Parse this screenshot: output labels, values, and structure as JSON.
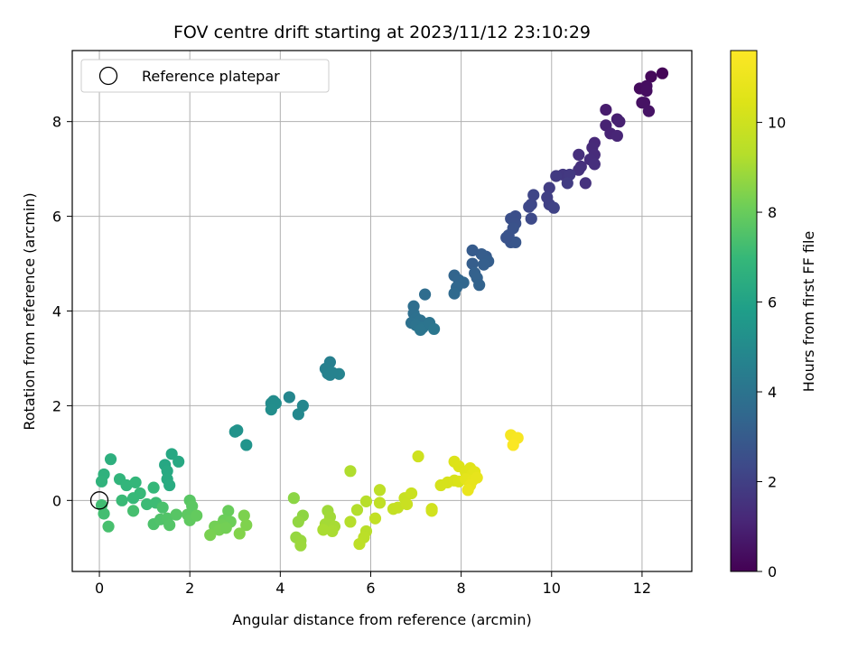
{
  "chart_data": {
    "type": "scatter",
    "title": "FOV centre drift starting at 2023/11/12 23:10:29",
    "xlabel": "Angular distance from reference (arcmin)",
    "ylabel": "Rotation from reference (arcmin)",
    "xlim": [
      -0.6,
      13.1
    ],
    "ylim": [
      -1.5,
      9.5
    ],
    "xticks": [
      0,
      2,
      4,
      6,
      8,
      10,
      12
    ],
    "yticks": [
      0,
      2,
      4,
      6,
      8
    ],
    "grid": true,
    "legend": {
      "position": "top-left",
      "entries": [
        "Reference platepar"
      ]
    },
    "reference_point": {
      "x": 0,
      "y": 0
    },
    "colorbar": {
      "label": "Hours from first FF file",
      "colormap": "viridis",
      "range": [
        0,
        11.6
      ],
      "ticks": [
        0,
        2,
        4,
        6,
        8,
        10
      ]
    },
    "points": [
      {
        "x": 12.45,
        "y": 9.02,
        "c": 0.1
      },
      {
        "x": 12.2,
        "y": 8.95,
        "c": 0.2
      },
      {
        "x": 11.95,
        "y": 8.7,
        "c": 0.3
      },
      {
        "x": 12.1,
        "y": 8.75,
        "c": 0.35
      },
      {
        "x": 12.1,
        "y": 8.65,
        "c": 0.4
      },
      {
        "x": 12.0,
        "y": 8.4,
        "c": 0.45
      },
      {
        "x": 12.05,
        "y": 8.4,
        "c": 0.5
      },
      {
        "x": 12.15,
        "y": 8.22,
        "c": 0.55
      },
      {
        "x": 11.2,
        "y": 8.25,
        "c": 0.8
      },
      {
        "x": 11.45,
        "y": 8.05,
        "c": 0.9
      },
      {
        "x": 11.5,
        "y": 8.0,
        "c": 0.95
      },
      {
        "x": 11.2,
        "y": 7.92,
        "c": 1.0
      },
      {
        "x": 11.3,
        "y": 7.75,
        "c": 1.05
      },
      {
        "x": 11.45,
        "y": 7.7,
        "c": 1.1
      },
      {
        "x": 10.95,
        "y": 7.55,
        "c": 1.2
      },
      {
        "x": 10.9,
        "y": 7.45,
        "c": 1.25
      },
      {
        "x": 10.95,
        "y": 7.3,
        "c": 1.3
      },
      {
        "x": 10.85,
        "y": 7.2,
        "c": 1.35
      },
      {
        "x": 10.95,
        "y": 7.1,
        "c": 1.4
      },
      {
        "x": 10.6,
        "y": 7.3,
        "c": 1.4
      },
      {
        "x": 10.65,
        "y": 7.05,
        "c": 1.45
      },
      {
        "x": 10.6,
        "y": 6.98,
        "c": 1.5
      },
      {
        "x": 10.75,
        "y": 6.7,
        "c": 1.5
      },
      {
        "x": 10.25,
        "y": 6.88,
        "c": 1.7
      },
      {
        "x": 10.4,
        "y": 6.88,
        "c": 1.75
      },
      {
        "x": 10.1,
        "y": 6.85,
        "c": 1.8
      },
      {
        "x": 10.35,
        "y": 6.7,
        "c": 1.85
      },
      {
        "x": 9.95,
        "y": 6.6,
        "c": 1.9
      },
      {
        "x": 9.9,
        "y": 6.4,
        "c": 2.0
      },
      {
        "x": 9.95,
        "y": 6.25,
        "c": 2.05
      },
      {
        "x": 10.05,
        "y": 6.18,
        "c": 2.1
      },
      {
        "x": 9.6,
        "y": 6.45,
        "c": 2.2
      },
      {
        "x": 9.55,
        "y": 6.25,
        "c": 2.25
      },
      {
        "x": 9.5,
        "y": 6.2,
        "c": 2.3
      },
      {
        "x": 9.55,
        "y": 5.95,
        "c": 2.35
      },
      {
        "x": 9.2,
        "y": 6.0,
        "c": 2.5
      },
      {
        "x": 9.1,
        "y": 5.95,
        "c": 2.55
      },
      {
        "x": 9.2,
        "y": 5.85,
        "c": 2.6
      },
      {
        "x": 9.15,
        "y": 5.75,
        "c": 2.65
      },
      {
        "x": 9.05,
        "y": 5.6,
        "c": 2.7
      },
      {
        "x": 9.1,
        "y": 5.45,
        "c": 2.75
      },
      {
        "x": 9.2,
        "y": 5.45,
        "c": 2.8
      },
      {
        "x": 9.0,
        "y": 5.55,
        "c": 2.7
      },
      {
        "x": 8.55,
        "y": 5.15,
        "c": 3.0
      },
      {
        "x": 8.45,
        "y": 5.2,
        "c": 3.05
      },
      {
        "x": 8.6,
        "y": 5.05,
        "c": 3.1
      },
      {
        "x": 8.5,
        "y": 4.98,
        "c": 3.15
      },
      {
        "x": 8.25,
        "y": 5.28,
        "c": 3.0
      },
      {
        "x": 8.25,
        "y": 5.0,
        "c": 3.1
      },
      {
        "x": 8.3,
        "y": 4.8,
        "c": 3.2
      },
      {
        "x": 8.35,
        "y": 4.7,
        "c": 3.25
      },
      {
        "x": 8.4,
        "y": 4.55,
        "c": 3.3
      },
      {
        "x": 7.85,
        "y": 4.75,
        "c": 3.35
      },
      {
        "x": 7.95,
        "y": 4.65,
        "c": 3.4
      },
      {
        "x": 8.05,
        "y": 4.6,
        "c": 3.45
      },
      {
        "x": 7.9,
        "y": 4.5,
        "c": 3.5
      },
      {
        "x": 7.85,
        "y": 4.37,
        "c": 3.55
      },
      {
        "x": 7.2,
        "y": 4.35,
        "c": 3.7
      },
      {
        "x": 6.95,
        "y": 4.1,
        "c": 3.75
      },
      {
        "x": 6.95,
        "y": 3.95,
        "c": 3.8
      },
      {
        "x": 7.0,
        "y": 3.85,
        "c": 3.85
      },
      {
        "x": 7.1,
        "y": 3.8,
        "c": 3.9
      },
      {
        "x": 6.9,
        "y": 3.75,
        "c": 3.9
      },
      {
        "x": 7.0,
        "y": 3.7,
        "c": 3.95
      },
      {
        "x": 7.15,
        "y": 3.65,
        "c": 4.0
      },
      {
        "x": 7.3,
        "y": 3.75,
        "c": 4.0
      },
      {
        "x": 7.1,
        "y": 3.6,
        "c": 4.05
      },
      {
        "x": 7.4,
        "y": 3.62,
        "c": 4.1
      },
      {
        "x": 5.1,
        "y": 2.92,
        "c": 4.5
      },
      {
        "x": 5.0,
        "y": 2.78,
        "c": 4.55
      },
      {
        "x": 5.05,
        "y": 2.68,
        "c": 4.6
      },
      {
        "x": 5.1,
        "y": 2.65,
        "c": 4.65
      },
      {
        "x": 5.3,
        "y": 2.67,
        "c": 4.7
      },
      {
        "x": 5.15,
        "y": 2.7,
        "c": 4.65
      },
      {
        "x": 4.2,
        "y": 2.18,
        "c": 4.8
      },
      {
        "x": 4.5,
        "y": 2.0,
        "c": 4.85
      },
      {
        "x": 4.4,
        "y": 1.82,
        "c": 4.9
      },
      {
        "x": 3.8,
        "y": 2.05,
        "c": 5.0
      },
      {
        "x": 3.85,
        "y": 2.1,
        "c": 5.05
      },
      {
        "x": 3.9,
        "y": 2.05,
        "c": 5.1
      },
      {
        "x": 3.8,
        "y": 1.92,
        "c": 5.15
      },
      {
        "x": 3.05,
        "y": 1.48,
        "c": 5.3
      },
      {
        "x": 3.0,
        "y": 1.45,
        "c": 5.35
      },
      {
        "x": 3.25,
        "y": 1.17,
        "c": 5.4
      },
      {
        "x": 1.45,
        "y": 0.75,
        "c": 6.2
      },
      {
        "x": 1.5,
        "y": 0.62,
        "c": 6.3
      },
      {
        "x": 1.6,
        "y": 0.98,
        "c": 6.2
      },
      {
        "x": 1.75,
        "y": 0.82,
        "c": 6.25
      },
      {
        "x": 1.5,
        "y": 0.45,
        "c": 6.35
      },
      {
        "x": 1.55,
        "y": 0.32,
        "c": 6.4
      },
      {
        "x": 0.25,
        "y": 0.87,
        "c": 6.6
      },
      {
        "x": 0.1,
        "y": 0.55,
        "c": 6.7
      },
      {
        "x": 0.05,
        "y": 0.4,
        "c": 6.75
      },
      {
        "x": 0.45,
        "y": 0.45,
        "c": 6.8
      },
      {
        "x": 0.6,
        "y": 0.32,
        "c": 6.85
      },
      {
        "x": 0.8,
        "y": 0.38,
        "c": 6.9
      },
      {
        "x": 1.2,
        "y": 0.27,
        "c": 6.95
      },
      {
        "x": 0.9,
        "y": 0.15,
        "c": 7.0
      },
      {
        "x": 0.75,
        "y": 0.05,
        "c": 7.0
      },
      {
        "x": 0.5,
        "y": 0.0,
        "c": 7.05
      },
      {
        "x": 1.05,
        "y": -0.08,
        "c": 7.1
      },
      {
        "x": 1.25,
        "y": -0.05,
        "c": 7.15
      },
      {
        "x": 0.05,
        "y": -0.1,
        "c": 7.2
      },
      {
        "x": 0.1,
        "y": -0.28,
        "c": 7.25
      },
      {
        "x": 0.75,
        "y": -0.22,
        "c": 7.3
      },
      {
        "x": 0.2,
        "y": -0.55,
        "c": 7.35
      },
      {
        "x": 1.4,
        "y": -0.15,
        "c": 7.4
      },
      {
        "x": 1.2,
        "y": -0.5,
        "c": 7.45
      },
      {
        "x": 1.35,
        "y": -0.4,
        "c": 7.5
      },
      {
        "x": 1.5,
        "y": -0.38,
        "c": 7.55
      },
      {
        "x": 1.55,
        "y": -0.52,
        "c": 7.6
      },
      {
        "x": 1.7,
        "y": -0.3,
        "c": 7.65
      },
      {
        "x": 2.0,
        "y": 0.0,
        "c": 7.7
      },
      {
        "x": 2.05,
        "y": -0.12,
        "c": 7.75
      },
      {
        "x": 1.95,
        "y": -0.3,
        "c": 7.8
      },
      {
        "x": 2.0,
        "y": -0.42,
        "c": 7.85
      },
      {
        "x": 2.15,
        "y": -0.32,
        "c": 7.9
      },
      {
        "x": 2.85,
        "y": -0.22,
        "c": 8.0
      },
      {
        "x": 2.75,
        "y": -0.42,
        "c": 8.05
      },
      {
        "x": 2.9,
        "y": -0.45,
        "c": 8.1
      },
      {
        "x": 2.7,
        "y": -0.52,
        "c": 8.15
      },
      {
        "x": 2.55,
        "y": -0.55,
        "c": 8.2
      },
      {
        "x": 2.65,
        "y": -0.62,
        "c": 8.25
      },
      {
        "x": 2.8,
        "y": -0.58,
        "c": 8.2
      },
      {
        "x": 2.45,
        "y": -0.73,
        "c": 8.3
      },
      {
        "x": 3.2,
        "y": -0.32,
        "c": 8.35
      },
      {
        "x": 3.25,
        "y": -0.52,
        "c": 8.4
      },
      {
        "x": 3.1,
        "y": -0.7,
        "c": 8.45
      },
      {
        "x": 4.3,
        "y": 0.05,
        "c": 8.6
      },
      {
        "x": 4.5,
        "y": -0.32,
        "c": 8.65
      },
      {
        "x": 4.4,
        "y": -0.45,
        "c": 8.7
      },
      {
        "x": 4.35,
        "y": -0.78,
        "c": 8.75
      },
      {
        "x": 4.45,
        "y": -0.85,
        "c": 8.8
      },
      {
        "x": 4.45,
        "y": -0.95,
        "c": 8.85
      },
      {
        "x": 5.05,
        "y": -0.22,
        "c": 8.9
      },
      {
        "x": 5.1,
        "y": -0.35,
        "c": 8.95
      },
      {
        "x": 5.0,
        "y": -0.5,
        "c": 9.0
      },
      {
        "x": 5.1,
        "y": -0.52,
        "c": 9.0
      },
      {
        "x": 5.2,
        "y": -0.55,
        "c": 9.05
      },
      {
        "x": 4.95,
        "y": -0.62,
        "c": 9.1
      },
      {
        "x": 5.15,
        "y": -0.65,
        "c": 9.1
      },
      {
        "x": 5.55,
        "y": 0.62,
        "c": 9.2
      },
      {
        "x": 5.7,
        "y": -0.2,
        "c": 9.25
      },
      {
        "x": 5.55,
        "y": -0.45,
        "c": 9.3
      },
      {
        "x": 5.9,
        "y": -0.02,
        "c": 9.35
      },
      {
        "x": 5.9,
        "y": -0.65,
        "c": 9.4
      },
      {
        "x": 5.85,
        "y": -0.78,
        "c": 9.45
      },
      {
        "x": 5.75,
        "y": -0.92,
        "c": 9.5
      },
      {
        "x": 6.2,
        "y": 0.22,
        "c": 9.55
      },
      {
        "x": 6.2,
        "y": -0.05,
        "c": 9.6
      },
      {
        "x": 6.1,
        "y": -0.38,
        "c": 9.65
      },
      {
        "x": 6.5,
        "y": -0.18,
        "c": 9.7
      },
      {
        "x": 6.6,
        "y": -0.15,
        "c": 9.75
      },
      {
        "x": 6.75,
        "y": 0.05,
        "c": 9.8
      },
      {
        "x": 6.8,
        "y": -0.08,
        "c": 9.85
      },
      {
        "x": 6.9,
        "y": 0.15,
        "c": 9.9
      },
      {
        "x": 7.05,
        "y": 0.93,
        "c": 10.0
      },
      {
        "x": 7.35,
        "y": -0.18,
        "c": 10.05
      },
      {
        "x": 7.35,
        "y": -0.22,
        "c": 10.1
      },
      {
        "x": 7.55,
        "y": 0.32,
        "c": 10.2
      },
      {
        "x": 7.7,
        "y": 0.38,
        "c": 10.25
      },
      {
        "x": 7.85,
        "y": 0.42,
        "c": 10.3
      },
      {
        "x": 7.95,
        "y": 0.4,
        "c": 10.35
      },
      {
        "x": 7.85,
        "y": 0.82,
        "c": 10.4
      },
      {
        "x": 7.95,
        "y": 0.72,
        "c": 10.45
      },
      {
        "x": 8.1,
        "y": 0.6,
        "c": 10.5
      },
      {
        "x": 8.2,
        "y": 0.68,
        "c": 10.55
      },
      {
        "x": 8.25,
        "y": 0.55,
        "c": 10.6
      },
      {
        "x": 8.3,
        "y": 0.6,
        "c": 10.65
      },
      {
        "x": 8.1,
        "y": 0.45,
        "c": 10.7
      },
      {
        "x": 8.25,
        "y": 0.42,
        "c": 10.75
      },
      {
        "x": 8.35,
        "y": 0.48,
        "c": 10.8
      },
      {
        "x": 8.2,
        "y": 0.32,
        "c": 10.85
      },
      {
        "x": 8.15,
        "y": 0.22,
        "c": 10.9
      },
      {
        "x": 9.1,
        "y": 1.38,
        "c": 11.3
      },
      {
        "x": 9.25,
        "y": 1.32,
        "c": 11.4
      },
      {
        "x": 9.15,
        "y": 1.17,
        "c": 11.5
      }
    ]
  }
}
